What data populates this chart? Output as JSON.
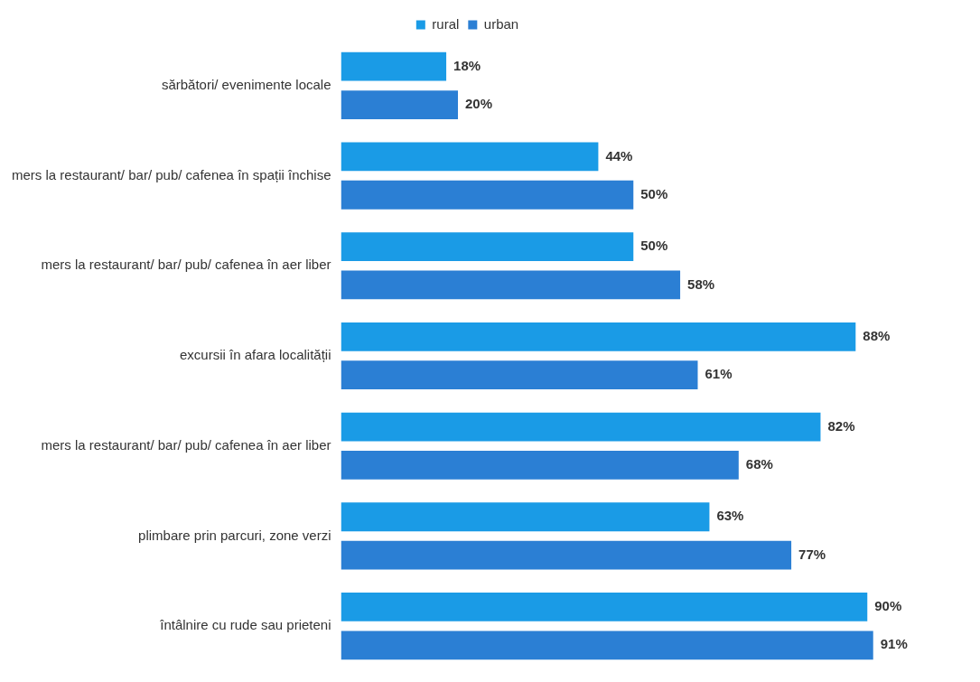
{
  "chart_data": {
    "type": "bar",
    "orientation": "horizontal",
    "legend": "top",
    "categories": [
      "sărbători/ evenimente locale",
      "mers la restaurant/ bar/ pub/ cafenea în spații închise",
      "mers la restaurant/ bar/ pub/ cafenea în aer liber",
      "excursii în afara localității",
      "mers la restaurant/ bar/ pub/ cafenea în aer liber",
      "plimbare prin parcuri, zone verzi",
      "întâlnire cu rude sau prieteni"
    ],
    "series": [
      {
        "name": "rural",
        "color": "#1a9be6",
        "values": [
          18,
          44,
          50,
          88,
          82,
          63,
          90
        ],
        "value_labels": [
          "18%",
          "44%",
          "50%",
          "88%",
          "82%",
          "63%",
          "90%"
        ]
      },
      {
        "name": "urban",
        "color": "#2b7fd4",
        "values": [
          20,
          50,
          58,
          61,
          68,
          77,
          91
        ],
        "value_labels": [
          "20%",
          "50%",
          "58%",
          "61%",
          "68%",
          "77%",
          "91%"
        ]
      }
    ]
  }
}
